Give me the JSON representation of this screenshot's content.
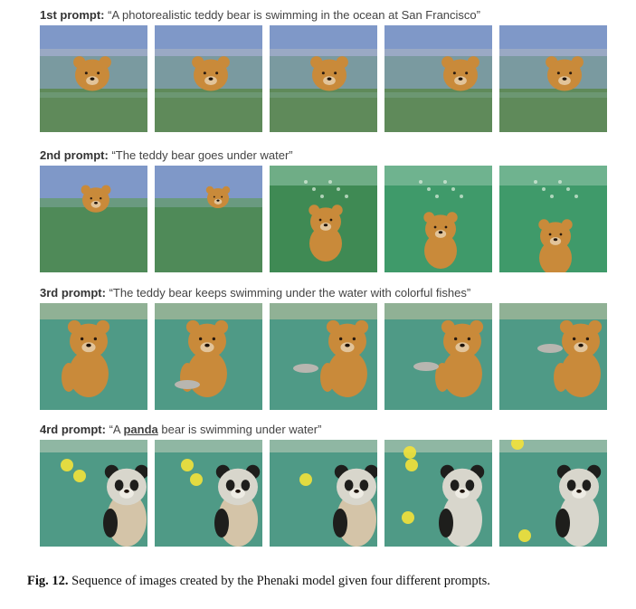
{
  "prompts": [
    {
      "prefix": "1st prompt:",
      "text": "“A photorealistic teddy bear is swimming in the ocean at San Francisco”",
      "scene": "surface",
      "frames": [
        "bear-surface-1",
        "bear-surface-2",
        "bear-surface-3",
        "bear-surface-4",
        "bear-surface-5"
      ]
    },
    {
      "prefix": "2nd prompt:",
      "text": "“The teddy bear goes under water”",
      "scene": "diving",
      "frames": [
        "bear-diving-1",
        "bear-diving-2",
        "bear-diving-3",
        "bear-diving-4",
        "bear-diving-5"
      ]
    },
    {
      "prefix": "3rd prompt:",
      "text": "“The teddy bear keeps swimming under the water with colorful fishes”",
      "scene": "underwater",
      "frames": [
        "bear-fish-1",
        "bear-fish-2",
        "bear-fish-3",
        "bear-fish-4",
        "bear-fish-5"
      ]
    },
    {
      "prefix": "4rd prompt:",
      "text_before": "“A ",
      "keyword": "panda",
      "text_after": " bear is swimming under water”",
      "scene": "panda",
      "frames": [
        "panda-1",
        "panda-2",
        "panda-3",
        "panda-4",
        "panda-5"
      ]
    }
  ],
  "caption": {
    "label": "Fig. 12.",
    "text": " Sequence of images created by the Phenaki model given four different prompts."
  },
  "colors": {
    "sky": "#7f98c8",
    "sea_surface": "#5f8a5a",
    "underwater": "#3f9a6a",
    "deep_teal": "#4f9a86",
    "bear": "#c98a3a",
    "panda_white": "#d8d6cc",
    "panda_black": "#1e1e1c",
    "bubble_yellow": "#f3e23a"
  }
}
